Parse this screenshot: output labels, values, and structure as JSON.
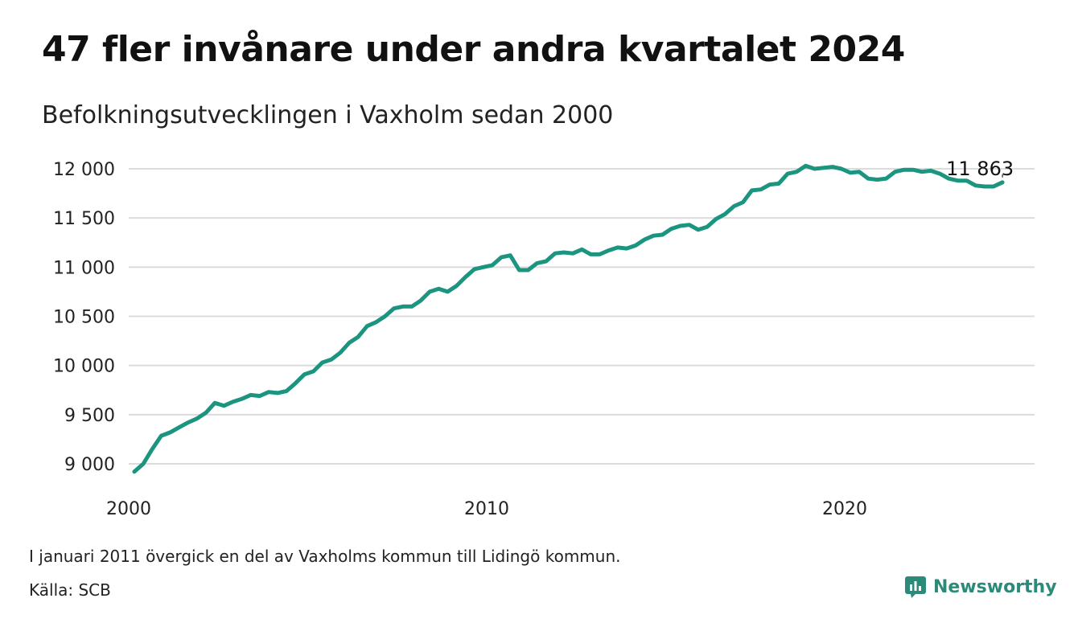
{
  "title": "47 fler invånare under andra kvartalet 2024",
  "subtitle": "Befolkningsutvecklingen i Vaxholm sedan 2000",
  "note": "I januari 2011 övergick en del av Vaxholms kommun till Lidingö kommun.",
  "source": "Källa: SCB",
  "brand": {
    "name": "Newsworthy",
    "color": "#2b8a7a"
  },
  "chart_data": {
    "type": "line",
    "x_start": 2000,
    "x_step": 0.25,
    "xlim": [
      2000,
      2024.5
    ],
    "ylim": [
      8900,
      12150
    ],
    "y_ticks": [
      9000,
      9500,
      10000,
      10500,
      11000,
      11500,
      12000
    ],
    "y_tick_labels": [
      "9 000",
      "9 500",
      "10 000",
      "10 500",
      "11 000",
      "11 500",
      "12 000"
    ],
    "x_ticks": [
      2000,
      2010,
      2020
    ],
    "x_tick_labels": [
      "2000",
      "2010",
      "2020"
    ],
    "grid": true,
    "line_color": "#1b9480",
    "end_label": "11 863",
    "values": [
      8920,
      9000,
      9150,
      9285,
      9320,
      9370,
      9420,
      9460,
      9520,
      9620,
      9590,
      9630,
      9660,
      9700,
      9690,
      9730,
      9720,
      9740,
      9820,
      9910,
      9940,
      10030,
      10060,
      10130,
      10230,
      10290,
      10400,
      10440,
      10500,
      10580,
      10600,
      10600,
      10660,
      10750,
      10780,
      10750,
      10810,
      10900,
      10980,
      11000,
      11020,
      11100,
      11120,
      10970,
      10970,
      11040,
      11060,
      11140,
      11150,
      11140,
      11180,
      11130,
      11130,
      11170,
      11200,
      11190,
      11220,
      11280,
      11320,
      11330,
      11390,
      11420,
      11430,
      11380,
      11410,
      11490,
      11540,
      11620,
      11660,
      11780,
      11790,
      11840,
      11850,
      11950,
      11970,
      12030,
      12000,
      12010,
      12020,
      12000,
      11960,
      11970,
      11900,
      11890,
      11900,
      11970,
      11990,
      11990,
      11970,
      11980,
      11950,
      11900,
      11880,
      11880,
      11830,
      11820,
      11820,
      11863
    ]
  }
}
